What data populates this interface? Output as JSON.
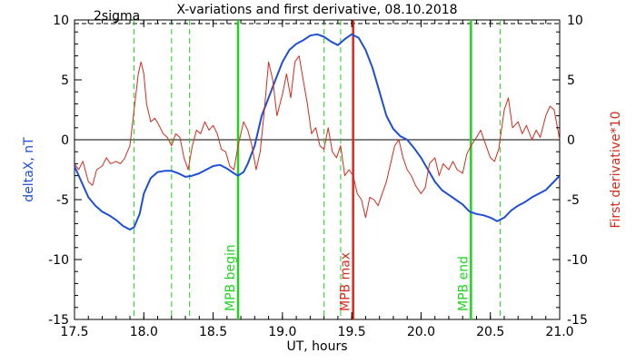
{
  "chart_data": {
    "type": "line",
    "title": "X-variations and first derivative, 08.10.2018",
    "xlabel": "UT, hours",
    "ylabel_left": "deltaX, nT",
    "ylabel_right": "First derivative*10",
    "xlim": [
      17.5,
      21.0
    ],
    "ylim": [
      -15,
      10
    ],
    "x_ticks": [
      "17.5",
      "18.0",
      "18.5",
      "19.0",
      "19.5",
      "20.0",
      "20.5",
      "21.0"
    ],
    "y_ticks_left": [
      "10",
      "5",
      "0",
      "-5",
      "-10",
      "-15"
    ],
    "y_ticks_right": [
      "10",
      "5",
      "0",
      "-5",
      "-10",
      "-15"
    ],
    "threshold_label": "2sigma",
    "threshold": 9.7,
    "grid": false,
    "colors": {
      "deltaX": "#1f4fd8",
      "derivative": "#d62a1e",
      "mpb": "#1fd41f",
      "max": "#d62a1e",
      "zero": "#000000"
    },
    "series": [
      {
        "name": "deltaX, nT",
        "x": [
          17.5,
          17.55,
          17.6,
          17.65,
          17.7,
          17.75,
          17.8,
          17.85,
          17.9,
          17.93,
          17.97,
          18.0,
          18.05,
          18.1,
          18.15,
          18.2,
          18.25,
          18.3,
          18.35,
          18.4,
          18.45,
          18.5,
          18.55,
          18.6,
          18.65,
          18.68,
          18.72,
          18.75,
          18.8,
          18.85,
          18.9,
          18.95,
          19.0,
          19.05,
          19.1,
          19.15,
          19.2,
          19.25,
          19.3,
          19.35,
          19.4,
          19.45,
          19.5,
          19.55,
          19.6,
          19.65,
          19.7,
          19.75,
          19.8,
          19.85,
          19.9,
          19.95,
          20.0,
          20.05,
          20.1,
          20.15,
          20.2,
          20.25,
          20.3,
          20.35,
          20.4,
          20.45,
          20.5,
          20.55,
          20.6,
          20.65,
          20.7,
          20.75,
          20.8,
          20.85,
          20.9,
          20.95,
          21.0
        ],
        "values": [
          -2.2,
          -3.5,
          -4.8,
          -5.5,
          -6,
          -6.3,
          -6.7,
          -7.2,
          -7.5,
          -7.3,
          -6.2,
          -4.5,
          -3.2,
          -2.7,
          -2.6,
          -2.6,
          -2.8,
          -3.1,
          -3.0,
          -2.8,
          -2.5,
          -2.2,
          -2.1,
          -2.4,
          -2.8,
          -3.0,
          -2.7,
          -2.0,
          -0.5,
          2,
          3.5,
          5,
          6.5,
          7.5,
          8,
          8.3,
          8.7,
          8.8,
          8.6,
          8.2,
          7.9,
          8.4,
          8.8,
          8.5,
          7.5,
          6,
          4,
          2,
          0.9,
          0.3,
          0,
          -0.7,
          -1.5,
          -2.5,
          -3.5,
          -4.2,
          -4.6,
          -5,
          -5.4,
          -6,
          -6.2,
          -6.3,
          -6.5,
          -6.8,
          -6.5,
          -5.9,
          -5.5,
          -5.2,
          -4.8,
          -4.5,
          -4.2,
          -3.6,
          -3.0
        ]
      },
      {
        "name": "First derivative*10",
        "x": [
          17.5,
          17.53,
          17.56,
          17.6,
          17.63,
          17.66,
          17.7,
          17.73,
          17.76,
          17.8,
          17.83,
          17.86,
          17.9,
          17.93,
          17.96,
          17.98,
          18.0,
          18.02,
          18.05,
          18.08,
          18.11,
          18.14,
          18.17,
          18.2,
          18.23,
          18.26,
          18.29,
          18.32,
          18.35,
          18.38,
          18.41,
          18.44,
          18.47,
          18.5,
          18.53,
          18.56,
          18.59,
          18.62,
          18.65,
          18.68,
          18.72,
          18.75,
          18.78,
          18.81,
          18.84,
          18.87,
          18.9,
          18.93,
          18.96,
          19.0,
          19.03,
          19.06,
          19.09,
          19.12,
          19.15,
          19.18,
          19.21,
          19.24,
          19.27,
          19.3,
          19.33,
          19.36,
          19.39,
          19.42,
          19.45,
          19.48,
          19.51,
          19.54,
          19.57,
          19.6,
          19.63,
          19.66,
          19.69,
          19.72,
          19.75,
          19.78,
          19.81,
          19.84,
          19.87,
          19.9,
          19.93,
          19.96,
          20.0,
          20.03,
          20.06,
          20.1,
          20.13,
          20.16,
          20.2,
          20.23,
          20.26,
          20.3,
          20.33,
          20.36,
          20.4,
          20.43,
          20.46,
          20.5,
          20.53,
          20.56,
          20.6,
          20.63,
          20.66,
          20.7,
          20.73,
          20.76,
          20.8,
          20.83,
          20.86,
          20.9,
          20.93,
          20.96,
          21.0
        ],
        "values": [
          -2,
          -2.5,
          -1.8,
          -3.5,
          -3.8,
          -2.5,
          -2.2,
          -1.5,
          -2,
          -1.8,
          -2,
          -1.6,
          -0.5,
          2.5,
          5.5,
          6.5,
          5.5,
          3,
          1.5,
          1.8,
          1.2,
          0.5,
          0.2,
          -0.5,
          0.5,
          0.2,
          -1.5,
          -2.5,
          -0.5,
          0.8,
          0.5,
          1.5,
          0.8,
          1.2,
          0.5,
          -0.8,
          -1,
          -2.2,
          -2.5,
          -0.5,
          1.5,
          0.8,
          -0.5,
          -2.5,
          -1,
          2.5,
          6.5,
          5,
          2,
          3.8,
          5.5,
          3.5,
          6.5,
          7,
          5,
          3,
          0.5,
          1,
          -0.5,
          -0.8,
          1,
          -1,
          -1.5,
          -0.5,
          -3,
          -2.5,
          -3,
          -4.5,
          -5,
          -6.5,
          -4.8,
          -5,
          -5.5,
          -4.5,
          -3.5,
          -2,
          -0.5,
          0,
          -1.5,
          -2.5,
          -3,
          -3.8,
          -4.5,
          -4,
          -2,
          -1.5,
          -3,
          -2,
          -2.5,
          -1.8,
          -2.5,
          -2.8,
          -1.2,
          -0.5,
          0.2,
          0.8,
          -0.2,
          -1.5,
          -1.8,
          -0.8,
          2.5,
          3.5,
          1,
          1.5,
          0.5,
          1.2,
          0,
          0.8,
          0.2,
          2,
          2.8,
          2.5,
          0
        ]
      }
    ],
    "vertical_lines": [
      {
        "x": 17.93,
        "style": "dashed",
        "color": "#1fd41f"
      },
      {
        "x": 18.2,
        "style": "dashed",
        "color": "#1fd41f"
      },
      {
        "x": 18.33,
        "style": "dashed",
        "color": "#1fd41f"
      },
      {
        "x": 18.68,
        "style": "solid",
        "color": "#1fd41f",
        "label": "MPB begin"
      },
      {
        "x": 19.3,
        "style": "dashed",
        "color": "#1fd41f"
      },
      {
        "x": 19.42,
        "style": "dashed",
        "color": "#1fd41f"
      },
      {
        "x": 19.51,
        "style": "solid",
        "color": "#d62a1e",
        "label": "MPB max"
      },
      {
        "x": 20.36,
        "style": "solid",
        "color": "#1fd41f",
        "label": "MPB end"
      },
      {
        "x": 20.57,
        "style": "dashed",
        "color": "#1fd41f"
      }
    ]
  }
}
